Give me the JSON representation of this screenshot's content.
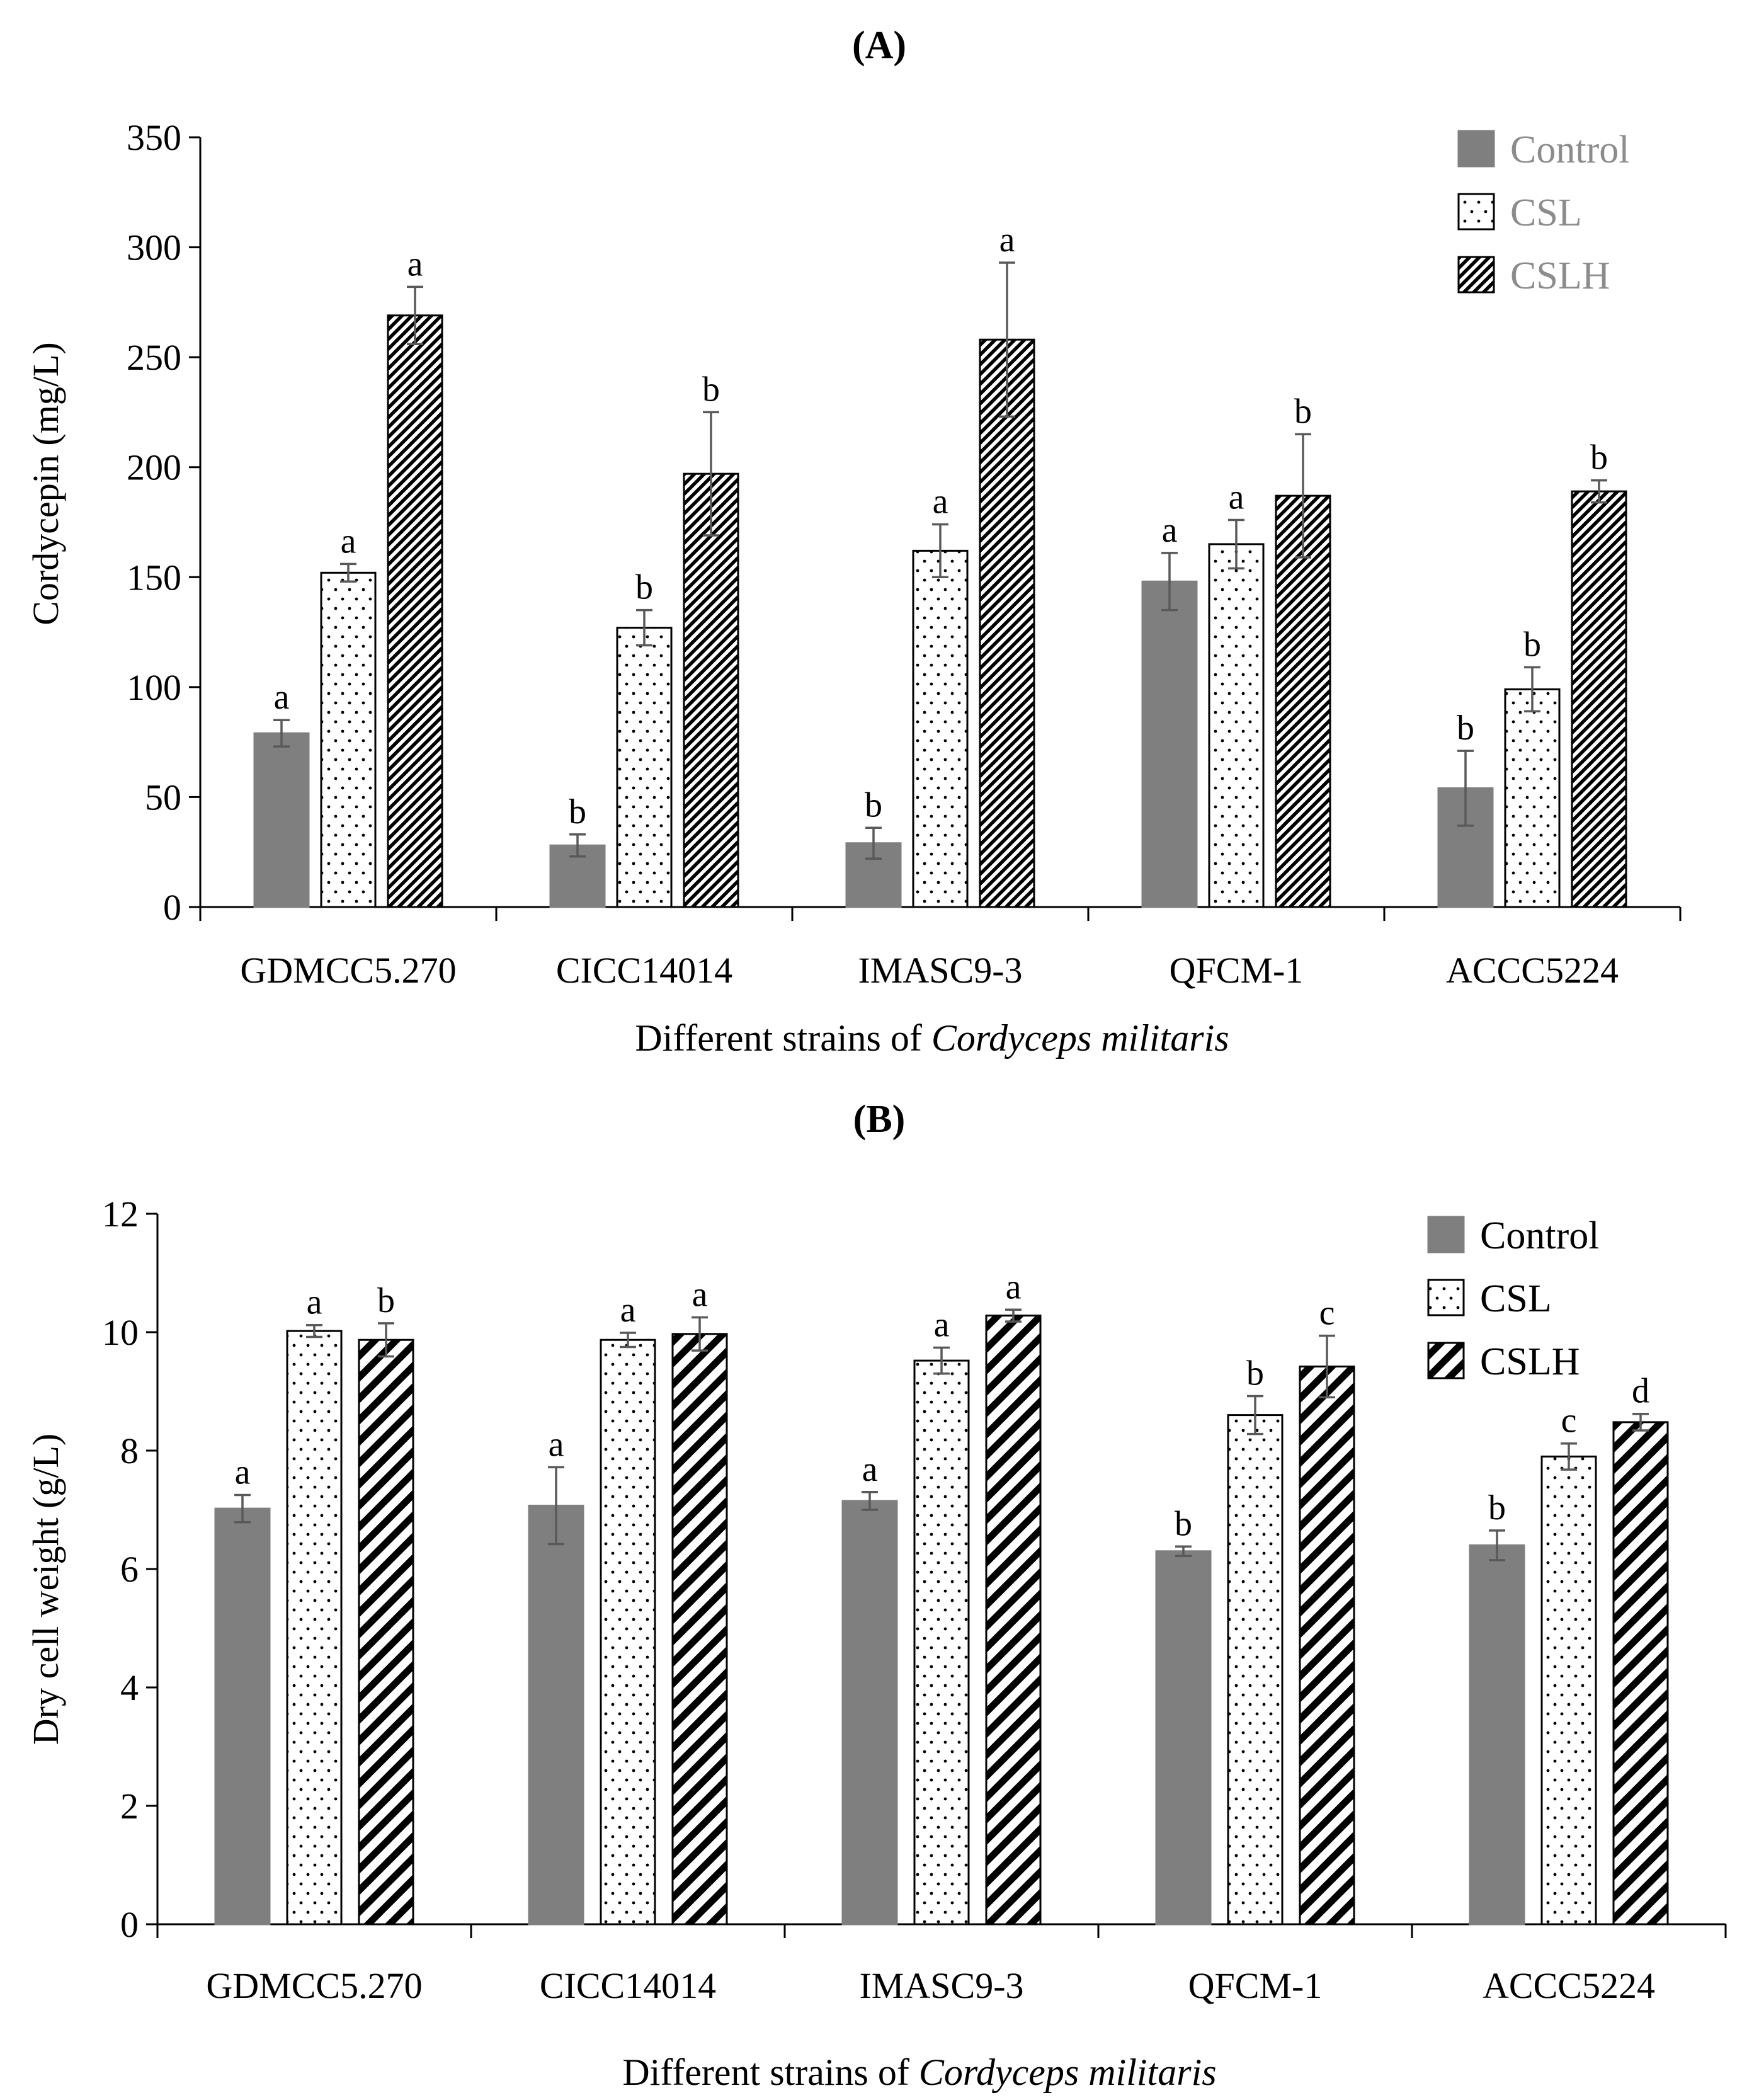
{
  "colors": {
    "control_fill": "#7f7f7f",
    "pattern_stroke": "#000000",
    "axis": "#000000",
    "error_bar": "#595959",
    "legend_text_a": "#8c8c8c",
    "legend_text_b": "#000000"
  },
  "chart_data": [
    {
      "type": "bar",
      "panel_label": "A",
      "title": "(A)",
      "ylabel": "Cordycepin (mg/L)",
      "xlabel_prefix": "Different strains of ",
      "xlabel_italic": "Cordyceps militaris",
      "ylim": [
        0,
        350
      ],
      "yticks": [
        0,
        50,
        100,
        150,
        200,
        250,
        300,
        350
      ],
      "categories": [
        "GDMCC5.270",
        "CICC14014",
        "IMASC9-3",
        "QFCM-1",
        "ACCC5224"
      ],
      "legend": [
        "Control",
        "CSL",
        "CSLH"
      ],
      "legend_position": "top-right",
      "series": [
        {
          "name": "Control",
          "pattern": "solid-gray",
          "values": [
            79,
            28,
            29,
            148,
            54
          ],
          "errors": [
            6,
            5,
            7,
            13,
            17
          ],
          "letters": [
            "a",
            "b",
            "b",
            "a",
            "b"
          ]
        },
        {
          "name": "CSL",
          "pattern": "dots",
          "values": [
            152,
            127,
            162,
            165,
            99
          ],
          "errors": [
            4,
            8,
            12,
            11,
            10
          ],
          "letters": [
            "a",
            "b",
            "a",
            "a",
            "b"
          ]
        },
        {
          "name": "CSLH",
          "pattern": "fine-diagonal",
          "values": [
            269,
            197,
            258,
            187,
            189
          ],
          "errors": [
            13,
            28,
            35,
            28,
            5
          ],
          "letters": [
            "a",
            "b",
            "a",
            "b",
            "b"
          ]
        }
      ]
    },
    {
      "type": "bar",
      "panel_label": "B",
      "title": "(B)",
      "ylabel": "Dry cell weight (g/L)",
      "xlabel_prefix": "Different strains of ",
      "xlabel_italic": "Cordyceps militaris",
      "ylim": [
        0,
        12
      ],
      "yticks": [
        0,
        2,
        4,
        6,
        8,
        10,
        12
      ],
      "categories": [
        "GDMCC5.270",
        "CICC14014",
        "IMASC9-3",
        "QFCM-1",
        "ACCC5224"
      ],
      "legend": [
        "Control",
        "CSL",
        "CSLH"
      ],
      "legend_position": "top-right",
      "series": [
        {
          "name": "Control",
          "pattern": "solid-gray",
          "values": [
            7.02,
            7.07,
            7.15,
            6.3,
            6.4
          ],
          "errors": [
            0.23,
            0.65,
            0.15,
            0.08,
            0.25
          ],
          "letters": [
            "a",
            "a",
            "a",
            "b",
            "b"
          ]
        },
        {
          "name": "CSL",
          "pattern": "dots",
          "values": [
            10.02,
            9.87,
            9.52,
            8.6,
            7.9
          ],
          "errors": [
            0.1,
            0.12,
            0.22,
            0.32,
            0.22
          ],
          "letters": [
            "a",
            "a",
            "a",
            "b",
            "c"
          ]
        },
        {
          "name": "CSLH",
          "pattern": "bold-diagonal",
          "values": [
            9.87,
            9.97,
            10.28,
            9.42,
            8.48
          ],
          "errors": [
            0.28,
            0.28,
            0.1,
            0.52,
            0.14
          ],
          "letters": [
            "b",
            "a",
            "a",
            "c",
            "d"
          ]
        }
      ]
    }
  ]
}
